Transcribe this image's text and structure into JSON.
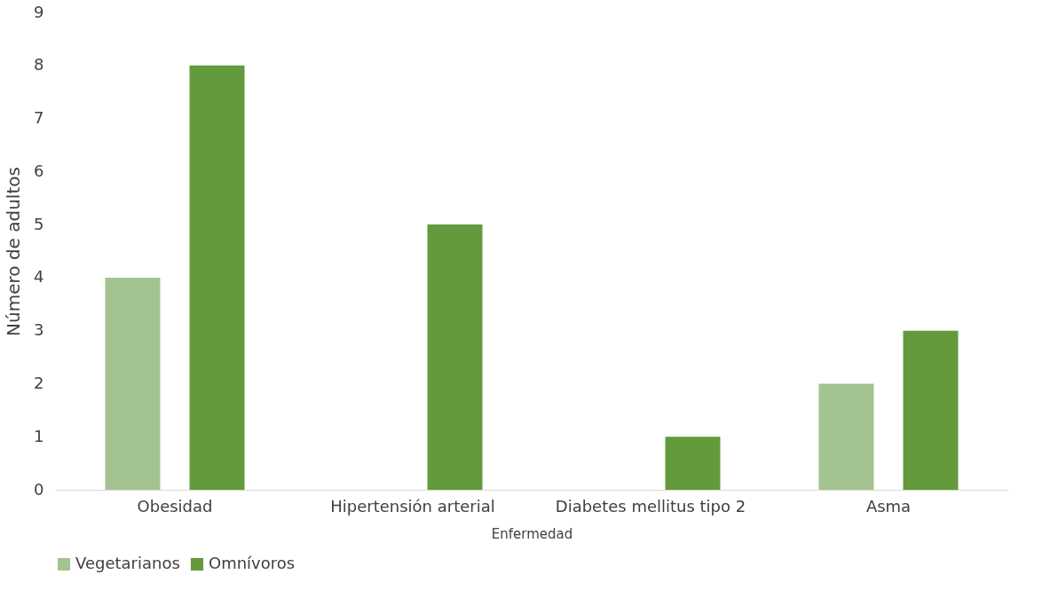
{
  "chart_data": {
    "type": "bar",
    "xlabel": "Enfermedad",
    "ylabel": "Número de adultos",
    "categories": [
      "Obesidad",
      "Hipertensión arterial",
      "Diabetes mellitus tipo 2",
      "Asma"
    ],
    "series": [
      {
        "name": "Vegetarianos",
        "color": "#a3c490",
        "values": [
          4,
          0,
          0,
          2
        ]
      },
      {
        "name": "Omnívoros",
        "color": "#629a3c",
        "values": [
          8,
          5,
          1,
          3
        ]
      }
    ],
    "ylim": [
      0,
      9
    ],
    "yticks": [
      0,
      1,
      2,
      3,
      4,
      5,
      6,
      7,
      8,
      9
    ],
    "grid": false,
    "legend": "bottom"
  }
}
